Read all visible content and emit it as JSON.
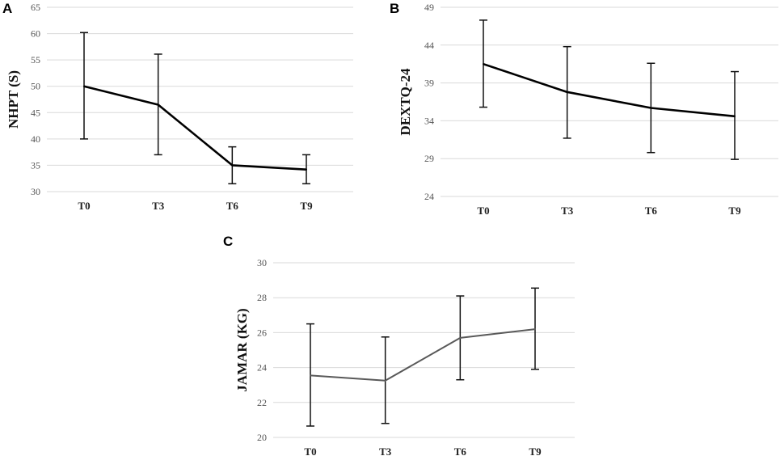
{
  "chart_data": [
    {
      "panel": "A",
      "type": "line",
      "ylabel": "NHPT (S)",
      "xlabel": "",
      "categories": [
        "T0",
        "T3",
        "T6",
        "T9"
      ],
      "ylim": [
        30,
        65
      ],
      "yticks": [
        30,
        35,
        40,
        45,
        50,
        55,
        60,
        65
      ],
      "grid": true,
      "series": [
        {
          "name": "NHPT",
          "values": [
            50,
            46.5,
            35,
            34.2
          ],
          "error_upper": [
            60.2,
            56.1,
            38.5,
            37
          ],
          "error_lower": [
            40,
            37,
            31.5,
            31.5
          ],
          "color": "#000000"
        }
      ]
    },
    {
      "panel": "B",
      "type": "line",
      "ylabel": "DEXTQ-24",
      "xlabel": "",
      "categories": [
        "T0",
        "T3",
        "T6",
        "T9"
      ],
      "ylim": [
        24,
        49
      ],
      "yticks": [
        24,
        29,
        34,
        39,
        44,
        49
      ],
      "grid": true,
      "series": [
        {
          "name": "DEXTQ-24",
          "values": [
            41.5,
            37.8,
            35.7,
            34.6
          ],
          "error_upper": [
            47.3,
            43.8,
            41.6,
            40.5
          ],
          "error_lower": [
            35.8,
            31.7,
            29.8,
            28.9
          ],
          "color": "#000000"
        }
      ]
    },
    {
      "panel": "C",
      "type": "line",
      "ylabel": "JAMAR (KG)",
      "xlabel": "",
      "categories": [
        "T0",
        "T3",
        "T6",
        "T9"
      ],
      "ylim": [
        20,
        30
      ],
      "yticks": [
        20,
        22,
        24,
        26,
        28,
        30
      ],
      "grid": true,
      "series": [
        {
          "name": "JAMAR",
          "values": [
            23.55,
            23.25,
            25.7,
            26.2
          ],
          "error_upper": [
            26.5,
            25.75,
            28.1,
            28.55
          ],
          "error_lower": [
            20.65,
            20.8,
            23.3,
            23.9
          ],
          "color": "#595959"
        }
      ]
    }
  ]
}
